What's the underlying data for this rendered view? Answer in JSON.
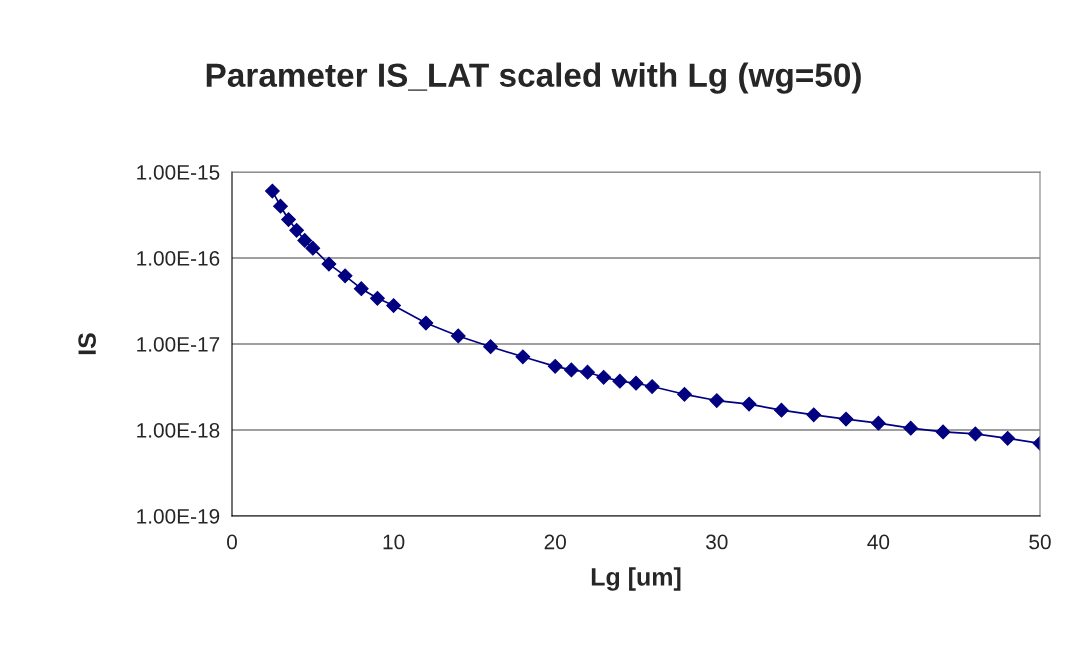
{
  "chart_data": {
    "type": "line",
    "title": "Parameter IS_LAT scaled with Lg (wg=50)",
    "xlabel": "Lg [um]",
    "ylabel": "IS",
    "x": [
      2.5,
      3,
      3.5,
      4,
      4.5,
      5,
      6,
      7,
      8,
      9,
      10,
      12,
      14,
      16,
      18,
      20,
      21,
      22,
      23,
      24,
      25,
      26,
      28,
      30,
      32,
      34,
      36,
      38,
      40,
      42,
      44,
      46,
      48,
      50
    ],
    "series": [
      {
        "color": "#000080",
        "values": [
          6e-16,
          4e-16,
          2.8e-16,
          2.1e-16,
          1.6e-16,
          1.3e-16,
          8.5e-17,
          6.2e-17,
          4.4e-17,
          3.4e-17,
          2.8e-17,
          1.75e-17,
          1.24e-17,
          9.3e-18,
          7.1e-18,
          5.5e-18,
          5e-18,
          4.7e-18,
          4.1e-18,
          3.7e-18,
          3.5e-18,
          3.2e-18,
          2.6e-18,
          2.2e-18,
          2e-18,
          1.7e-18,
          1.5e-18,
          1.34e-18,
          1.2e-18,
          1.05e-18,
          9.5e-19,
          9e-19,
          8e-19,
          7e-19
        ]
      }
    ],
    "log": "y",
    "xlim": [
      0,
      50
    ],
    "xticks": [
      0,
      10,
      20,
      30,
      40,
      50
    ],
    "ylim": [
      1e-19,
      1e-15
    ],
    "yticks": [
      {
        "value": 1e-19,
        "label": "1.00E-19"
      },
      {
        "value": 1e-18,
        "label": "1.00E-18"
      },
      {
        "value": 1e-17,
        "label": "1.00E-17"
      },
      {
        "value": 1e-16,
        "label": "1.00E-16"
      },
      {
        "value": 1e-15,
        "label": "1.00E-15"
      }
    ],
    "grid": "y",
    "legend": false,
    "marker": "diamond",
    "line_style": "solid"
  }
}
